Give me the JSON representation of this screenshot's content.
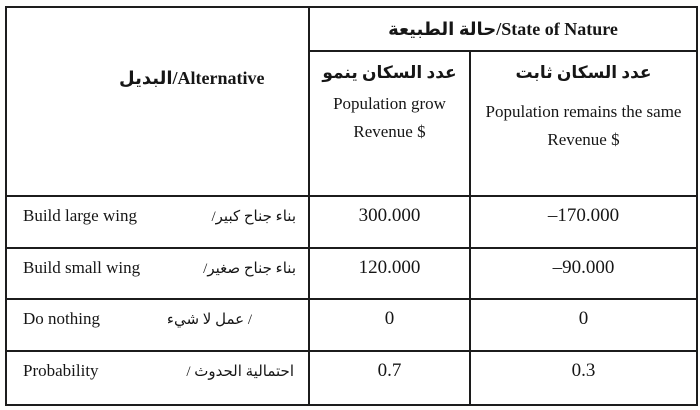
{
  "colors": {
    "background": "#ffffff",
    "border": "#1c1c1c",
    "ink": "#161616"
  },
  "table": {
    "alternative_header": "البديل/Alternative",
    "state_of_nature_header": "حالة الطبيعة/State of Nature",
    "columns": [
      {
        "ar": "عدد السكان ينمو",
        "en": "Population grow",
        "revenue": "Revenue $"
      },
      {
        "ar": "عدد السكان ثابت",
        "en": "Population remains the same",
        "revenue": "Revenue $"
      }
    ],
    "rows": [
      {
        "en": "Build large wing",
        "ar": "/بناء جناح كبير",
        "grow": "300.000",
        "same": "–170.000"
      },
      {
        "en": "Build small wing",
        "ar": "/بناء جناح صغير",
        "grow": "120.000",
        "same": "–90.000"
      },
      {
        "en": "Do nothing",
        "ar": "عمل لا شيء /",
        "grow": "0",
        "same": "0"
      },
      {
        "en": "Probability",
        "ar": "/ احتمالية الحدوث",
        "grow": "0.7",
        "same": "0.3"
      }
    ]
  }
}
